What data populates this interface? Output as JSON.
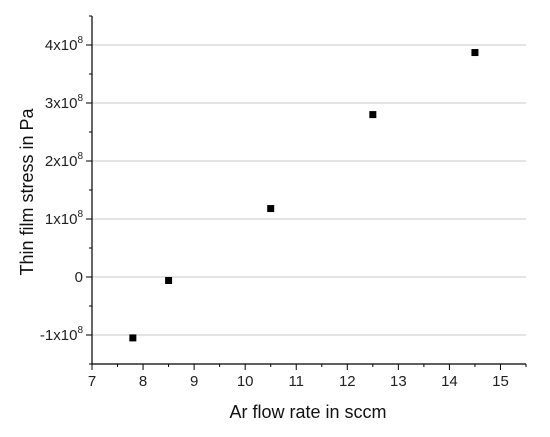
{
  "chart_data": {
    "type": "scatter",
    "xlabel": "Ar flow rate in sccm",
    "ylabel": "Thin film stress in Pa",
    "xlim": [
      7,
      15.5
    ],
    "ylim": [
      -150000000,
      450000000
    ],
    "x_ticks": [
      7,
      8,
      9,
      10,
      11,
      12,
      13,
      14,
      15
    ],
    "y_ticks": [
      {
        "value": -100000000,
        "label": "-1x10",
        "exp": "8"
      },
      {
        "value": 0,
        "label": "0",
        "exp": ""
      },
      {
        "value": 100000000,
        "label": "1x10",
        "exp": "8"
      },
      {
        "value": 200000000,
        "label": "2x10",
        "exp": "8"
      },
      {
        "value": 300000000,
        "label": "3x10",
        "exp": "8"
      },
      {
        "value": 400000000,
        "label": "4x10",
        "exp": "8"
      }
    ],
    "grid": "horizontal",
    "marker": "square",
    "marker_color": "#000000",
    "grid_color": "#c8c8c8",
    "points": [
      {
        "x": 7.8,
        "y": -105000000
      },
      {
        "x": 8.5,
        "y": -6000000
      },
      {
        "x": 10.5,
        "y": 118000000
      },
      {
        "x": 12.5,
        "y": 280000000
      },
      {
        "x": 14.5,
        "y": 387000000
      }
    ]
  }
}
